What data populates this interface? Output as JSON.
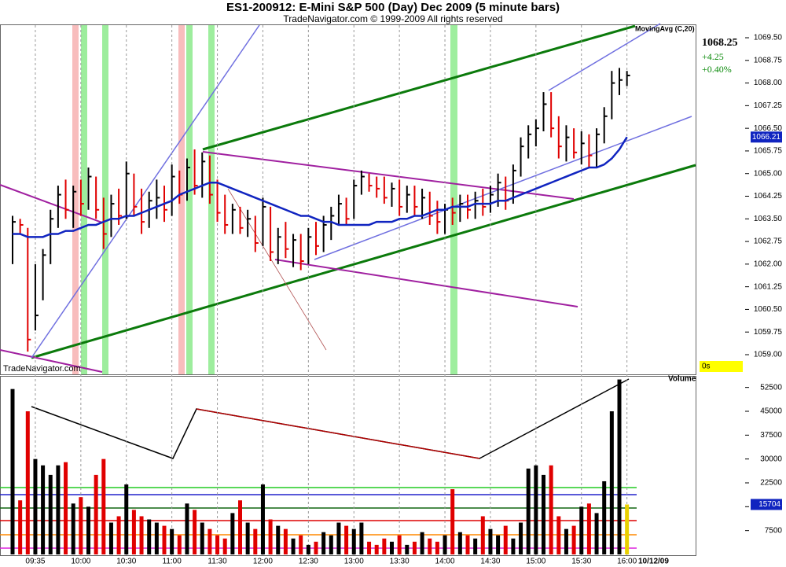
{
  "chart_data": [
    {
      "type": "ohlc",
      "title": "ES1-200912:  E-Mini S&P 500 (Day) Dec 2009  (5 minute bars)",
      "subtitle": "TradeNavigator.com © 1999-2009 All rights reserved",
      "watermark": "TradeNavigator.com",
      "change": "+4.25",
      "change_pct": "+0.40%",
      "timer": "0s",
      "up_color": "#000000",
      "down_color": "#e00000",
      "categories": [
        null,
        null,
        null,
        "09:35",
        null,
        null,
        null,
        null,
        null,
        "10:00",
        null,
        null,
        null,
        null,
        null,
        "10:30",
        null,
        null,
        null,
        null,
        null,
        "11:00",
        null,
        null,
        null,
        null,
        null,
        "11:30",
        null,
        null,
        null,
        null,
        null,
        "12:00",
        null,
        null,
        null,
        null,
        null,
        "12:30",
        null,
        null,
        null,
        null,
        null,
        "13:00",
        null,
        null,
        null,
        null,
        null,
        "13:30",
        null,
        null,
        null,
        null,
        null,
        "14:00",
        null,
        null,
        null,
        null,
        null,
        "14:30",
        null,
        null,
        null,
        null,
        null,
        "15:00",
        null,
        null,
        null,
        null,
        null,
        "15:30",
        null,
        null,
        null,
        null,
        null,
        "16:00"
      ],
      "high": [
        1063.6,
        1063.5,
        1063.2,
        1062.0,
        1062.5,
        1063.8,
        1064.6,
        1064.8,
        1064.6,
        1064.8,
        1065.2,
        1064.9,
        1064.2,
        1064.3,
        1064.5,
        1065.4,
        1065.0,
        1064.5,
        1064.4,
        1064.8,
        1064.6,
        1065.3,
        1065.1,
        1065.5,
        1065.8,
        1065.7,
        1065.6,
        1064.8,
        1064.3,
        1064.0,
        1063.9,
        1063.8,
        1063.6,
        1064.2,
        1063.9,
        1063.2,
        1063.4,
        1063.0,
        1063.0,
        1063.2,
        1063.4,
        1063.6,
        1063.9,
        1064.3,
        1064.2,
        1064.8,
        1065.1,
        1065.0,
        1064.9,
        1064.9,
        1064.7,
        1064.8,
        1064.6,
        1064.6,
        1064.5,
        1064.4,
        1064.1,
        1064.0,
        1064.2,
        1064.3,
        1064.3,
        1064.4,
        1064.5,
        1064.6,
        1065.0,
        1064.9,
        1065.3,
        1066.2,
        1066.6,
        1066.8,
        1067.7,
        1067.7,
        1066.9,
        1066.6,
        1066.5,
        1066.4,
        1066.3,
        1066.5,
        1067.2,
        1068.4,
        1068.5,
        1068.4
      ],
      "low": [
        1062.0,
        1063.0,
        1059.1,
        1059.8,
        1060.8,
        1062.0,
        1063.2,
        1063.5,
        1063.2,
        1063.6,
        1063.8,
        1063.5,
        1062.5,
        1062.9,
        1063.3,
        1063.5,
        1063.6,
        1063.0,
        1063.2,
        1063.5,
        1063.4,
        1063.6,
        1064.0,
        1064.1,
        1064.3,
        1064.2,
        1064.0,
        1063.4,
        1063.0,
        1063.0,
        1063.0,
        1062.9,
        1062.4,
        1062.6,
        1062.1,
        1062.0,
        1062.2,
        1061.9,
        1061.8,
        1062.0,
        1062.3,
        1062.4,
        1062.8,
        1063.3,
        1063.3,
        1063.5,
        1064.3,
        1064.4,
        1064.2,
        1064.0,
        1063.9,
        1063.6,
        1063.7,
        1063.6,
        1063.5,
        1063.3,
        1063.0,
        1063.0,
        1063.3,
        1063.4,
        1063.5,
        1063.5,
        1063.6,
        1063.7,
        1063.9,
        1063.8,
        1064.0,
        1064.9,
        1065.5,
        1065.9,
        1066.4,
        1066.2,
        1065.5,
        1065.4,
        1065.5,
        1065.3,
        1065.2,
        1065.2,
        1066.0,
        1066.8,
        1067.6,
        1067.9
      ],
      "close": [
        1063.4,
        1063.3,
        1059.5,
        1060.3,
        1062.3,
        1063.5,
        1064.3,
        1063.8,
        1064.4,
        1064.0,
        1064.9,
        1063.8,
        1063.0,
        1064.0,
        1063.6,
        1065.0,
        1063.9,
        1063.4,
        1064.1,
        1064.2,
        1063.8,
        1064.9,
        1064.3,
        1065.2,
        1064.6,
        1065.4,
        1064.3,
        1063.7,
        1063.3,
        1063.8,
        1063.2,
        1063.5,
        1062.7,
        1063.9,
        1062.4,
        1062.9,
        1062.5,
        1062.8,
        1062.1,
        1062.9,
        1062.6,
        1063.3,
        1063.6,
        1064.0,
        1063.5,
        1064.6,
        1064.9,
        1064.6,
        1064.5,
        1064.2,
        1064.5,
        1063.9,
        1064.3,
        1063.9,
        1064.2,
        1063.6,
        1063.4,
        1063.8,
        1063.7,
        1064.0,
        1063.8,
        1064.1,
        1063.9,
        1064.3,
        1064.7,
        1064.1,
        1065.1,
        1065.9,
        1066.3,
        1066.5,
        1067.3,
        1066.5,
        1065.9,
        1066.2,
        1065.7,
        1066.0,
        1065.6,
        1066.3,
        1066.9,
        1068.0,
        1068.1,
        1068.25
      ],
      "series": [
        {
          "name": "MovingAvg (C,20)",
          "color": "#1024c0",
          "values": [
            1063.0,
            1063.0,
            1062.9,
            1062.9,
            1062.9,
            1063.0,
            1063.0,
            1063.1,
            1063.1,
            1063.2,
            1063.3,
            1063.3,
            1063.4,
            1063.5,
            1063.5,
            1063.6,
            1063.6,
            1063.7,
            1063.8,
            1063.9,
            1064.0,
            1064.1,
            1064.3,
            1064.4,
            1064.5,
            1064.6,
            1064.7,
            1064.7,
            1064.6,
            1064.5,
            1064.4,
            1064.3,
            1064.2,
            1064.1,
            1064.0,
            1063.9,
            1063.8,
            1063.7,
            1063.6,
            1063.6,
            1063.5,
            1063.4,
            1063.4,
            1063.3,
            1063.3,
            1063.3,
            1063.3,
            1063.3,
            1063.4,
            1063.4,
            1063.4,
            1063.5,
            1063.5,
            1063.6,
            1063.6,
            1063.7,
            1063.8,
            1063.8,
            1063.9,
            1063.9,
            1063.9,
            1064.0,
            1064.0,
            1064.0,
            1064.1,
            1064.1,
            1064.2,
            1064.3,
            1064.4,
            1064.5,
            1064.6,
            1064.7,
            1064.8,
            1064.9,
            1065.0,
            1065.1,
            1065.2,
            1065.2,
            1065.3,
            1065.5,
            1065.8,
            1066.21
          ]
        }
      ],
      "ylim": [
        1059,
        1069.5
      ],
      "yticks": [
        {
          "value": 1059,
          "label": "1059.00"
        },
        1059.75,
        {
          "value": 1060.5,
          "label": "1060.50"
        },
        1061.25,
        {
          "value": 1062,
          "label": "1062.00"
        },
        1062.75,
        {
          "value": 1063.5,
          "label": "1063.50"
        },
        1064.25,
        {
          "value": 1065,
          "label": "1065.00"
        },
        1065.75,
        {
          "value": 1066.5,
          "label": "1066.50"
        },
        1067.25,
        {
          "value": 1068,
          "label": "1068.00"
        },
        1068.75,
        {
          "value": 1069.5,
          "label": "1069.50"
        }
      ]
    },
    {
      "type": "bar",
      "title": "Volume",
      "date": "10/12/09",
      "values": [
        52000,
        17000,
        45000,
        30000,
        28000,
        25000,
        28000,
        29000,
        16000,
        18000,
        15000,
        25000,
        30000,
        10000,
        12000,
        22000,
        14000,
        12000,
        11000,
        10000,
        9000,
        8000,
        6000,
        16000,
        14000,
        10000,
        8000,
        6000,
        5000,
        13000,
        17000,
        10000,
        8000,
        22000,
        11000,
        9000,
        8000,
        5000,
        6000,
        3000,
        4000,
        7000,
        6000,
        10000,
        9000,
        8000,
        10000,
        4000,
        3000,
        5000,
        4000,
        6000,
        3000,
        4000,
        7000,
        5000,
        4000,
        6000,
        20500,
        7000,
        6000,
        5000,
        12000,
        8000,
        6000,
        9000,
        5000,
        10000,
        27000,
        28000,
        25000,
        28000,
        12000,
        8000,
        9000,
        15000,
        16000,
        13000,
        23000,
        45000,
        55000,
        15704
      ],
      "ylim": [
        0,
        56000
      ],
      "yticks": [
        7500,
        15000,
        22500,
        30000,
        37500,
        45000,
        52500
      ]
    }
  ]
}
